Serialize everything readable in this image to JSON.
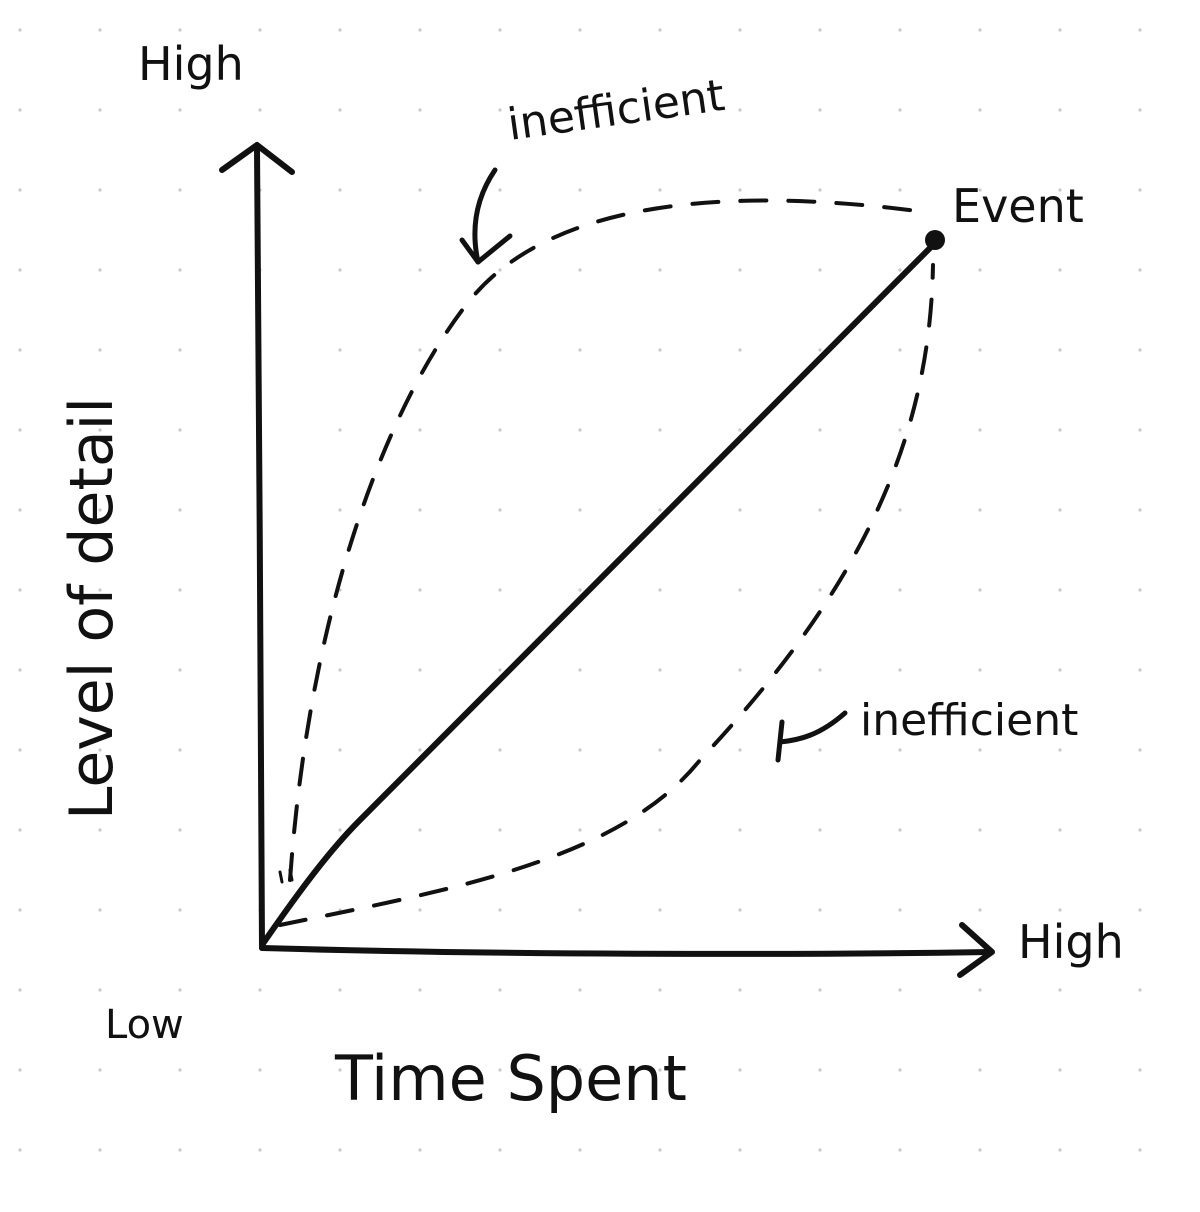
{
  "diagram": {
    "y_axis": {
      "label": "Level of detail",
      "high_label": "High"
    },
    "x_axis": {
      "label": "Time Spent",
      "high_label": "High"
    },
    "origin_label": "Low",
    "endpoint_label": "Event",
    "curves": {
      "upper": {
        "label": "inefficient"
      },
      "lower": {
        "label": "inefficient"
      }
    }
  },
  "colors": {
    "ink": "#111111",
    "paper": "#ffffff",
    "grid_dots": "#c9c9c9"
  }
}
